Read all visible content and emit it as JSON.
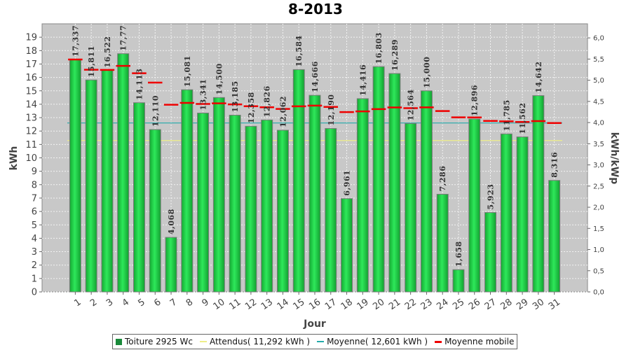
{
  "chart_data": {
    "type": "bar",
    "title": "8-2013",
    "xlabel": "Jour",
    "ylabel": "kWh",
    "y2label": "kWh/kWp",
    "ylim": [
      0,
      20
    ],
    "y2lim": [
      0,
      6.333
    ],
    "y_ticks": [
      "0",
      "1",
      "2",
      "3",
      "4",
      "5",
      "6",
      "7",
      "8",
      "9",
      "10",
      "11",
      "12",
      "13",
      "14",
      "15",
      "16",
      "17",
      "18",
      "19"
    ],
    "y2_ticks": [
      "0,0",
      "0,5",
      "1,0",
      "1,5",
      "2,0",
      "2,5",
      "3,0",
      "3,5",
      "4,0",
      "4,5",
      "5,0",
      "5,5",
      "6,0"
    ],
    "y2_tick_values": [
      0,
      0.5,
      1.0,
      1.5,
      2.0,
      2.5,
      3.0,
      3.5,
      4.0,
      4.5,
      5.0,
      5.5,
      6.0
    ],
    "grid": true,
    "legend_position": "bottom",
    "categories": [
      "1",
      "2",
      "3",
      "4",
      "5",
      "6",
      "7",
      "8",
      "9",
      "10",
      "11",
      "12",
      "13",
      "14",
      "15",
      "16",
      "17",
      "18",
      "19",
      "20",
      "21",
      "22",
      "23",
      "24",
      "25",
      "26",
      "27",
      "28",
      "29",
      "30",
      "31"
    ],
    "series": [
      {
        "name": "Toiture 2925 Wc",
        "kind": "bar",
        "color": "#22cc44",
        "values": [
          17.337,
          15.811,
          16.522,
          17.77,
          14.113,
          12.11,
          4.068,
          15.081,
          13.341,
          14.5,
          13.185,
          12.358,
          12.826,
          12.062,
          16.584,
          14.666,
          12.19,
          6.961,
          14.416,
          16.803,
          16.289,
          12.564,
          15.0,
          7.286,
          1.658,
          12.896,
          5.923,
          11.785,
          11.562,
          14.642,
          8.316
        ],
        "labels": [
          "17,337",
          "15,811",
          "16,522",
          "17,77",
          "14,113",
          "12,110",
          "4,068",
          "15,081",
          "13,341",
          "14,500",
          "13,185",
          "12,358",
          "12,826",
          "12,062",
          "16,584",
          "14,666",
          "12,190",
          "6,961",
          "14,416",
          "16,803",
          "16,289",
          "12,564",
          "15,000",
          "7,286",
          "1,658",
          "12,896",
          "5,923",
          "11,785",
          "11,562",
          "14,642",
          "8,316"
        ]
      },
      {
        "name": "Attendus( 11,292 kWh )",
        "kind": "hline",
        "color": "#eeee88",
        "value": 11.292
      },
      {
        "name": "Moyenne( 12,601 kWh )",
        "kind": "hline",
        "color": "#22aaaa",
        "value": 12.601
      },
      {
        "name": "Moyenne mobile",
        "kind": "step",
        "color": "#ee0000",
        "values": [
          17.337,
          16.574,
          16.557,
          16.86,
          16.311,
          15.611,
          13.962,
          14.102,
          14.018,
          14.066,
          13.985,
          13.85,
          13.772,
          13.65,
          13.845,
          13.897,
          13.796,
          13.416,
          13.469,
          13.635,
          13.759,
          13.709,
          13.765,
          13.495,
          13.021,
          13.016,
          12.754,
          12.719,
          12.679,
          12.744,
          12.601
        ]
      }
    ]
  }
}
